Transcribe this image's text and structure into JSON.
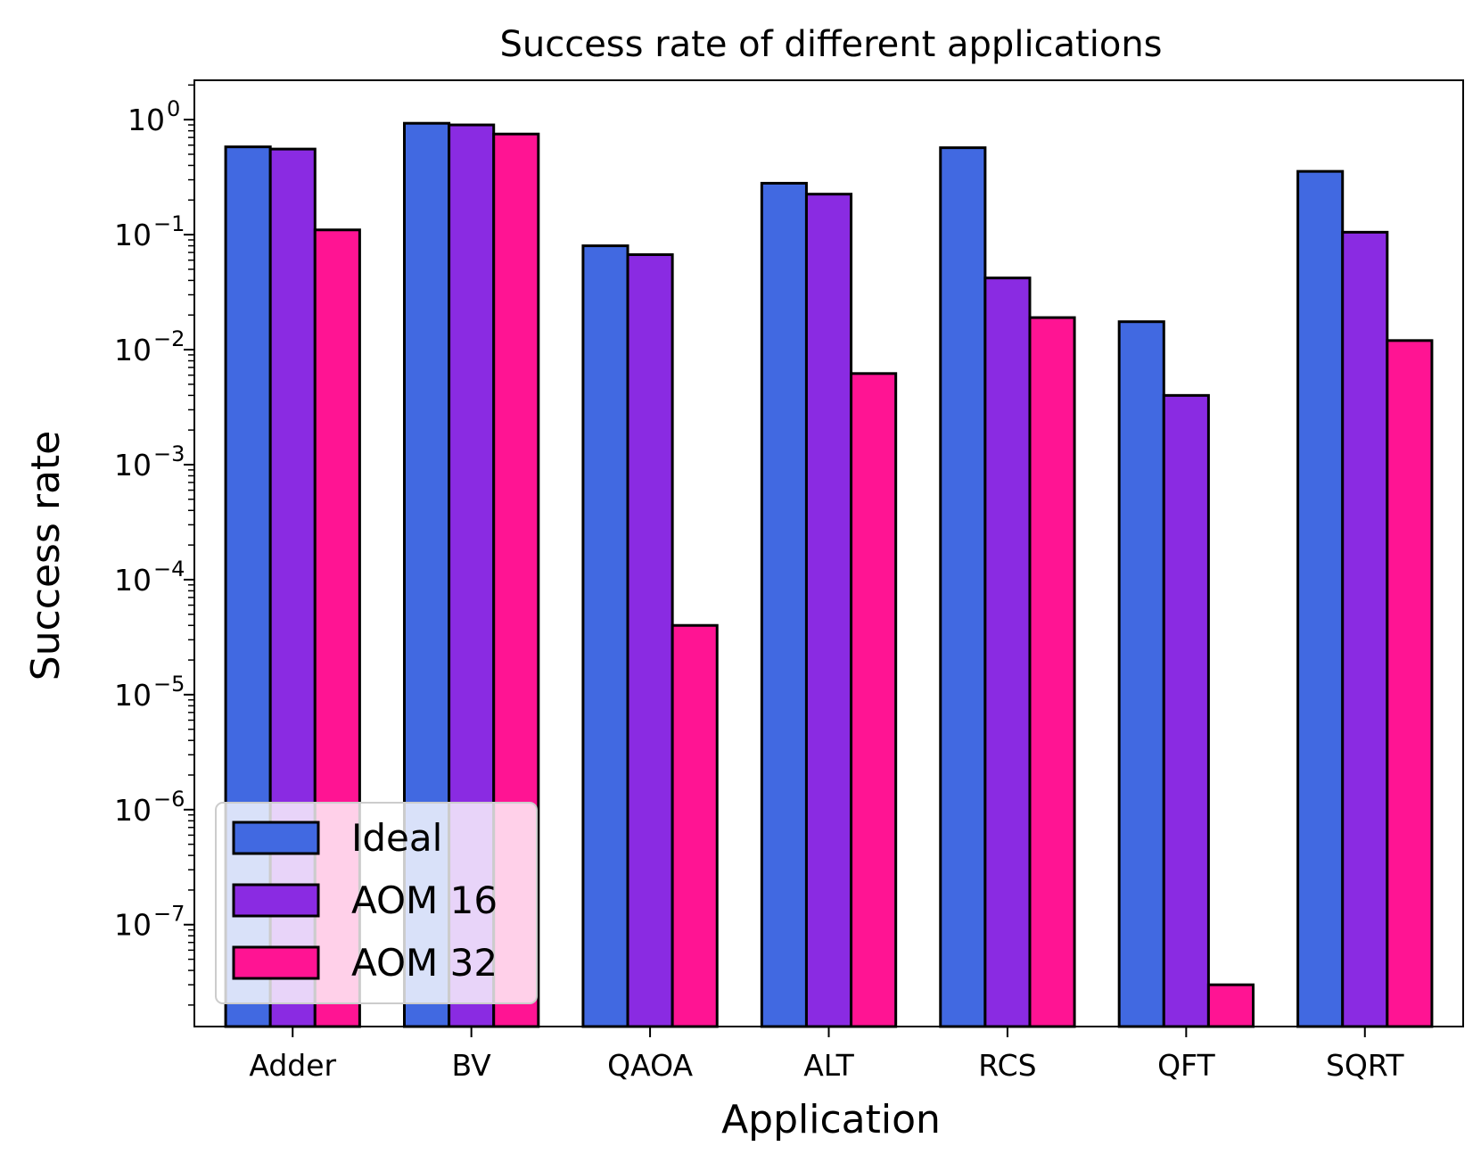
{
  "chart_data": {
    "type": "bar",
    "title": "Success rate of different applications",
    "xlabel": "Application",
    "ylabel": "Success rate",
    "yscale": "log",
    "ylim": [
      1.3e-08,
      2.2
    ],
    "y_ticks": [
      {
        "value": 1,
        "base": "10",
        "exp": "0"
      },
      {
        "value": 0.1,
        "base": "10",
        "exp": "−1"
      },
      {
        "value": 0.01,
        "base": "10",
        "exp": "−2"
      },
      {
        "value": 0.001,
        "base": "10",
        "exp": "−3"
      },
      {
        "value": 0.0001,
        "base": "10",
        "exp": "−4"
      },
      {
        "value": 1e-05,
        "base": "10",
        "exp": "−5"
      },
      {
        "value": 1e-06,
        "base": "10",
        "exp": "−6"
      },
      {
        "value": 1e-07,
        "base": "10",
        "exp": "−7"
      }
    ],
    "categories": [
      "Adder",
      "BV",
      "QAOA",
      "ALT",
      "RCS",
      "QFT",
      "SQRT"
    ],
    "series": [
      {
        "name": "Ideal",
        "color": "#4169e1",
        "values": [
          0.58,
          0.93,
          0.08,
          0.28,
          0.57,
          0.0175,
          0.355
        ]
      },
      {
        "name": "AOM 16",
        "color": "#8a2be2",
        "values": [
          0.555,
          0.9,
          0.067,
          0.225,
          0.042,
          0.004,
          0.105
        ]
      },
      {
        "name": "AOM 32",
        "color": "#ff1493",
        "values": [
          0.11,
          0.75,
          4e-05,
          0.0062,
          0.019,
          3e-08,
          0.012
        ]
      }
    ],
    "legend": {
      "location": "lower-left"
    }
  }
}
